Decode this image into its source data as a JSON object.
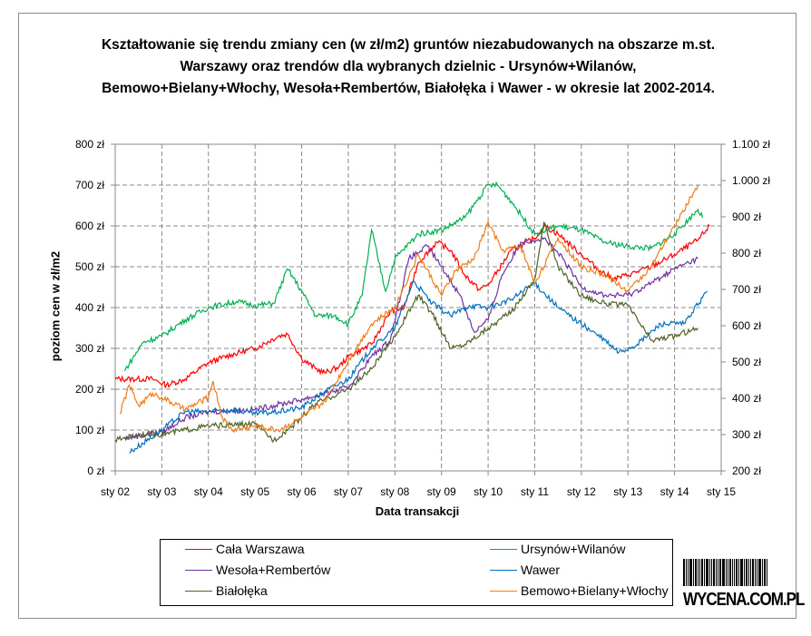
{
  "chart_data": {
    "type": "line",
    "title": "Kształtowanie się trendu zmiany cen (w zł/m2) gruntów niezabudowanych na obszarze m.st. Warszawy oraz trendów dla wybranych dzielnic - Ursynów+Wilanów, Bemowo+Bielany+Włochy, Wesoła+Rembertów, Białołęka i Wawer - w okresie lat 2002-2014.",
    "xlabel": "Data transakcji",
    "ylabel": "poziom cen w zł/m2",
    "x_ticks": [
      "sty 02",
      "sty 03",
      "sty 04",
      "sty 05",
      "sty 06",
      "sty 07",
      "sty 08",
      "sty 09",
      "sty 10",
      "sty 11",
      "sty 12",
      "sty 13",
      "sty 14",
      "sty 15"
    ],
    "xlim": [
      2002,
      2015
    ],
    "y_ticks": [
      "0 zł",
      "100 zł",
      "200 zł",
      "300 zł",
      "400 zł",
      "500 zł",
      "600 zł",
      "700 zł",
      "800 zł"
    ],
    "ylim": [
      0,
      800
    ],
    "y2_ticks": [
      "200 zł",
      "300 zł",
      "400 zł",
      "500 zł",
      "600 zł",
      "700 zł",
      "800 zł",
      "900 zł",
      "1.000 zł",
      "1.100 zł"
    ],
    "y2lim": [
      200,
      1100
    ],
    "grid": true,
    "legend_position": "bottom",
    "series": [
      {
        "name": "Cała Warszawa",
        "color": "#ff0000",
        "x": [
          2002.0,
          2002.8,
          2003.1,
          2003.5,
          2004.0,
          2004.5,
          2005.0,
          2005.5,
          2005.7,
          2006.0,
          2006.3,
          2006.5,
          2006.8,
          2007.0,
          2007.5,
          2007.9,
          2008.2,
          2008.5,
          2008.9,
          2009.2,
          2009.5,
          2009.8,
          2010.0,
          2010.5,
          2011.0,
          2011.2,
          2011.5,
          2012.0,
          2012.4,
          2012.7,
          2013.0,
          2013.5,
          2014.0,
          2014.5,
          2014.75
        ],
        "y": [
          225,
          225,
          210,
          225,
          265,
          285,
          300,
          330,
          335,
          275,
          250,
          240,
          255,
          280,
          310,
          390,
          400,
          510,
          560,
          540,
          480,
          445,
          455,
          540,
          570,
          600,
          580,
          530,
          490,
          470,
          480,
          500,
          530,
          565,
          600
        ]
      },
      {
        "name": "Ursynów+Wilanów",
        "color": "#00b050",
        "x": [
          2002.2,
          2002.6,
          2003.0,
          2003.5,
          2004.0,
          2004.6,
          2005.0,
          2005.4,
          2005.7,
          2006.0,
          2006.3,
          2006.7,
          2007.0,
          2007.3,
          2007.5,
          2007.8,
          2008.0,
          2008.5,
          2009.0,
          2009.5,
          2010.0,
          2010.2,
          2010.5,
          2011.0,
          2011.5,
          2012.0,
          2012.5,
          2013.0,
          2013.5,
          2014.0,
          2014.5,
          2014.6
        ],
        "y": [
          245,
          315,
          330,
          370,
          400,
          415,
          405,
          410,
          495,
          440,
          380,
          380,
          360,
          430,
          590,
          440,
          520,
          580,
          590,
          620,
          700,
          700,
          660,
          580,
          600,
          590,
          560,
          550,
          545,
          580,
          640,
          620
        ]
      },
      {
        "name": "Wesoła+Rembertów",
        "color": "#7030a0",
        "x": [
          2002.2,
          2003.0,
          2003.5,
          2004.0,
          2005.0,
          2006.0,
          2006.7,
          2007.0,
          2007.5,
          2007.9,
          2008.3,
          2008.7,
          2009.0,
          2009.4,
          2009.7,
          2010.0,
          2010.3,
          2010.7,
          2011.2,
          2011.6,
          2012.0,
          2012.5,
          2013.0,
          2013.5,
          2014.0,
          2014.5
        ],
        "y": [
          80,
          95,
          130,
          145,
          150,
          175,
          195,
          205,
          280,
          320,
          520,
          550,
          500,
          430,
          340,
          370,
          480,
          560,
          570,
          520,
          450,
          430,
          430,
          460,
          495,
          520
        ]
      },
      {
        "name": "Wawer",
        "color": "#0070c0",
        "x": [
          2002.3,
          2003.0,
          2003.5,
          2004.0,
          2004.5,
          2005.0,
          2005.5,
          2006.0,
          2006.5,
          2007.0,
          2007.5,
          2008.0,
          2008.4,
          2008.8,
          2009.2,
          2009.6,
          2010.0,
          2010.5,
          2011.0,
          2011.5,
          2012.0,
          2012.5,
          2012.8,
          2013.2,
          2013.7,
          2014.2,
          2014.7
        ],
        "y": [
          45,
          100,
          145,
          145,
          150,
          140,
          145,
          155,
          195,
          225,
          300,
          350,
          465,
          410,
          380,
          405,
          400,
          420,
          460,
          400,
          360,
          320,
          290,
          310,
          360,
          360,
          440
        ]
      },
      {
        "name": "Białołęka",
        "color": "#4f6228",
        "x": [
          2002.0,
          2002.5,
          2003.0,
          2004.0,
          2005.0,
          2005.4,
          2005.8,
          2006.3,
          2007.0,
          2007.5,
          2008.0,
          2008.5,
          2008.8,
          2009.2,
          2009.5,
          2010.0,
          2010.5,
          2011.0,
          2011.2,
          2011.5,
          2012.0,
          2012.5,
          2013.0,
          2013.5,
          2014.0,
          2014.5
        ],
        "y": [
          75,
          90,
          90,
          110,
          115,
          75,
          110,
          165,
          200,
          250,
          330,
          430,
          385,
          300,
          310,
          350,
          390,
          470,
          610,
          500,
          430,
          410,
          405,
          320,
          330,
          350
        ]
      },
      {
        "name": "Bemowo+Bielany+Włochy",
        "color": "#f07c14",
        "x": [
          2002.1,
          2002.3,
          2002.5,
          2002.8,
          2003.0,
          2003.5,
          2004.0,
          2004.1,
          2004.3,
          2004.5,
          2005.0,
          2005.5,
          2006.0,
          2006.5,
          2007.0,
          2007.5,
          2008.0,
          2008.5,
          2009.0,
          2009.3,
          2009.7,
          2010.0,
          2010.3,
          2010.7,
          2011.0,
          2011.5,
          2012.0,
          2012.5,
          2013.0,
          2013.5,
          2014.0,
          2014.5
        ],
        "y": [
          140,
          210,
          160,
          190,
          180,
          150,
          180,
          220,
          130,
          100,
          110,
          100,
          130,
          170,
          270,
          360,
          400,
          530,
          430,
          490,
          520,
          610,
          540,
          550,
          460,
          570,
          500,
          480,
          440,
          500,
          600,
          700
        ]
      }
    ]
  },
  "watermark": "WYCENA.COM.PL"
}
